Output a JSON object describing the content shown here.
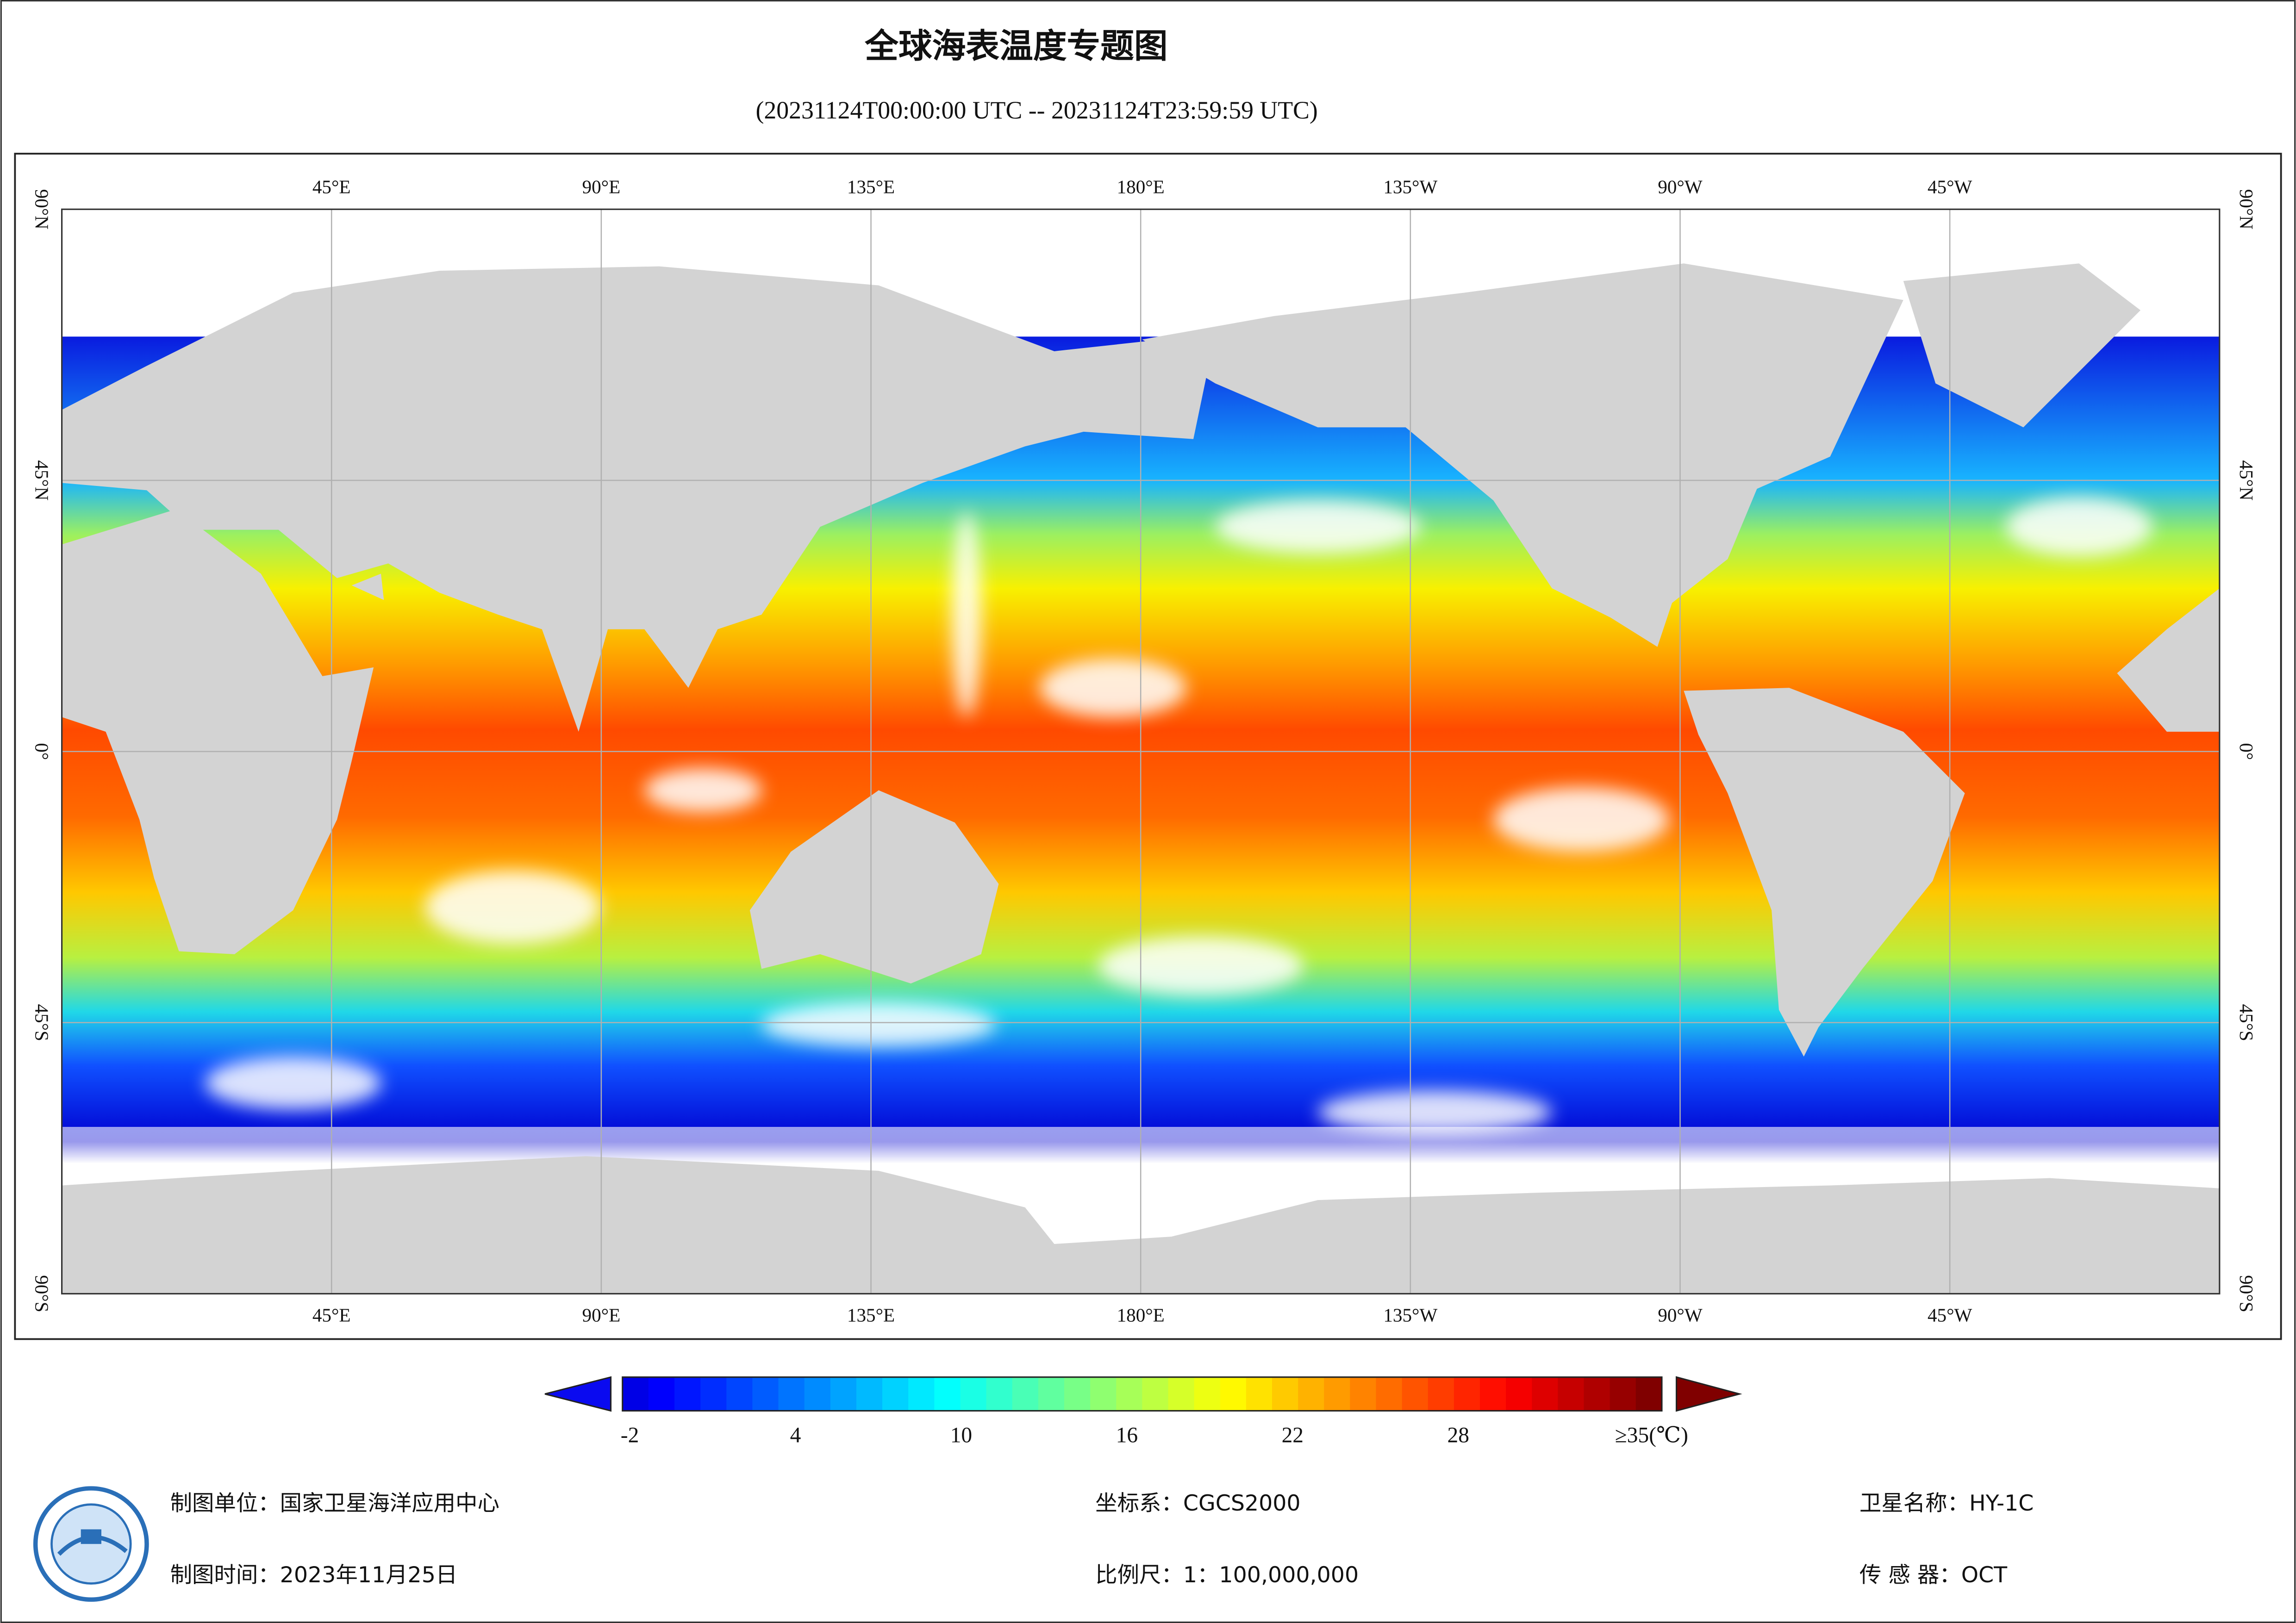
{
  "header": {
    "title": "全球海表温度专题图",
    "subtitle": "(20231124T00:00:00 UTC -- 20231124T23:59:59 UTC)"
  },
  "map": {
    "lon_labels": [
      "45°E",
      "90°E",
      "135°E",
      "180°E",
      "135°W",
      "90°W",
      "45°W"
    ],
    "lat_labels": [
      "90°N",
      "45°N",
      "0°",
      "45°S",
      "90°S"
    ]
  },
  "colorbar": {
    "min": -2,
    "max": 35,
    "ticks": [
      -2,
      4,
      10,
      16,
      22,
      28,
      {
        "value": 35,
        "label": "≥35(℃)"
      }
    ]
  },
  "footer": {
    "unit": "制图单位：国家卫星海洋应用中心",
    "time": "制图时间：2023年11月25日",
    "crs": "坐标系：CGCS2000",
    "scale": "比例尺：1：100,000,000",
    "satellite": "卫星名称：HY-1C",
    "sensor": "传 感 器：OCT"
  }
}
